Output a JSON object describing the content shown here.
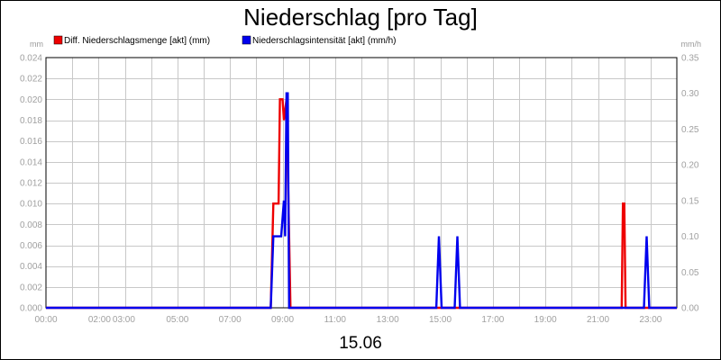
{
  "chart_data": {
    "type": "line",
    "title": "Niederschlag [pro Tag]",
    "date_label": "15.06",
    "y_left_unit": "mm",
    "y_right_unit": "mm/h",
    "y_left_range": [
      0,
      0.024
    ],
    "y_right_range": [
      0,
      0.35
    ],
    "y_left_ticks": [
      "0.000",
      "0.002",
      "0.004",
      "0.006",
      "0.008",
      "0.010",
      "0.012",
      "0.014",
      "0.016",
      "0.018",
      "0.020",
      "0.022",
      "0.024"
    ],
    "y_right_ticks": [
      "0.00",
      "0.05",
      "0.10",
      "0.15",
      "0.20",
      "0.25",
      "0.30",
      "0.35"
    ],
    "x_range_hours": [
      0,
      24
    ],
    "x_ticks": [
      {
        "h": 0,
        "label": "00:00"
      },
      {
        "h": 2,
        "label": "02:00"
      },
      {
        "h": 3,
        "label": "03:00"
      },
      {
        "h": 5,
        "label": "05:00"
      },
      {
        "h": 7,
        "label": "07:00"
      },
      {
        "h": 9,
        "label": "09:00"
      },
      {
        "h": 11,
        "label": "11:00"
      },
      {
        "h": 13,
        "label": "13:00"
      },
      {
        "h": 15,
        "label": "15:00"
      },
      {
        "h": 17,
        "label": "17:00"
      },
      {
        "h": 19,
        "label": "19:00"
      },
      {
        "h": 21,
        "label": "21:00"
      },
      {
        "h": 23,
        "label": "23:00"
      }
    ],
    "legend_position": "top-left",
    "grid": true,
    "series": [
      {
        "name": "Diff. Niederschlagsmenge [akt] (mm)",
        "color": "#ee0000",
        "axis": "left",
        "points": [
          [
            0,
            0
          ],
          [
            8.55,
            0
          ],
          [
            8.65,
            0.01
          ],
          [
            8.85,
            0.01
          ],
          [
            8.9,
            0.02
          ],
          [
            9.0,
            0.02
          ],
          [
            9.05,
            0.018
          ],
          [
            9.15,
            0.02
          ],
          [
            9.3,
            0
          ],
          [
            21.9,
            0
          ],
          [
            21.95,
            0.01
          ],
          [
            22.0,
            0.01
          ],
          [
            22.05,
            0
          ],
          [
            24,
            0
          ]
        ]
      },
      {
        "name": "Niederschlagsintensität [akt] (mm/h)",
        "color": "#0000ee",
        "axis": "right",
        "points": [
          [
            0,
            0
          ],
          [
            8.55,
            0
          ],
          [
            8.65,
            0.1
          ],
          [
            8.95,
            0.1
          ],
          [
            9.05,
            0.15
          ],
          [
            9.1,
            0.1
          ],
          [
            9.15,
            0.3
          ],
          [
            9.2,
            0.3
          ],
          [
            9.25,
            0
          ],
          [
            14.85,
            0
          ],
          [
            14.95,
            0.1
          ],
          [
            15.05,
            0
          ],
          [
            15.55,
            0
          ],
          [
            15.65,
            0.1
          ],
          [
            15.75,
            0
          ],
          [
            22.75,
            0
          ],
          [
            22.85,
            0.1
          ],
          [
            22.95,
            0
          ],
          [
            24,
            0
          ]
        ]
      }
    ]
  }
}
